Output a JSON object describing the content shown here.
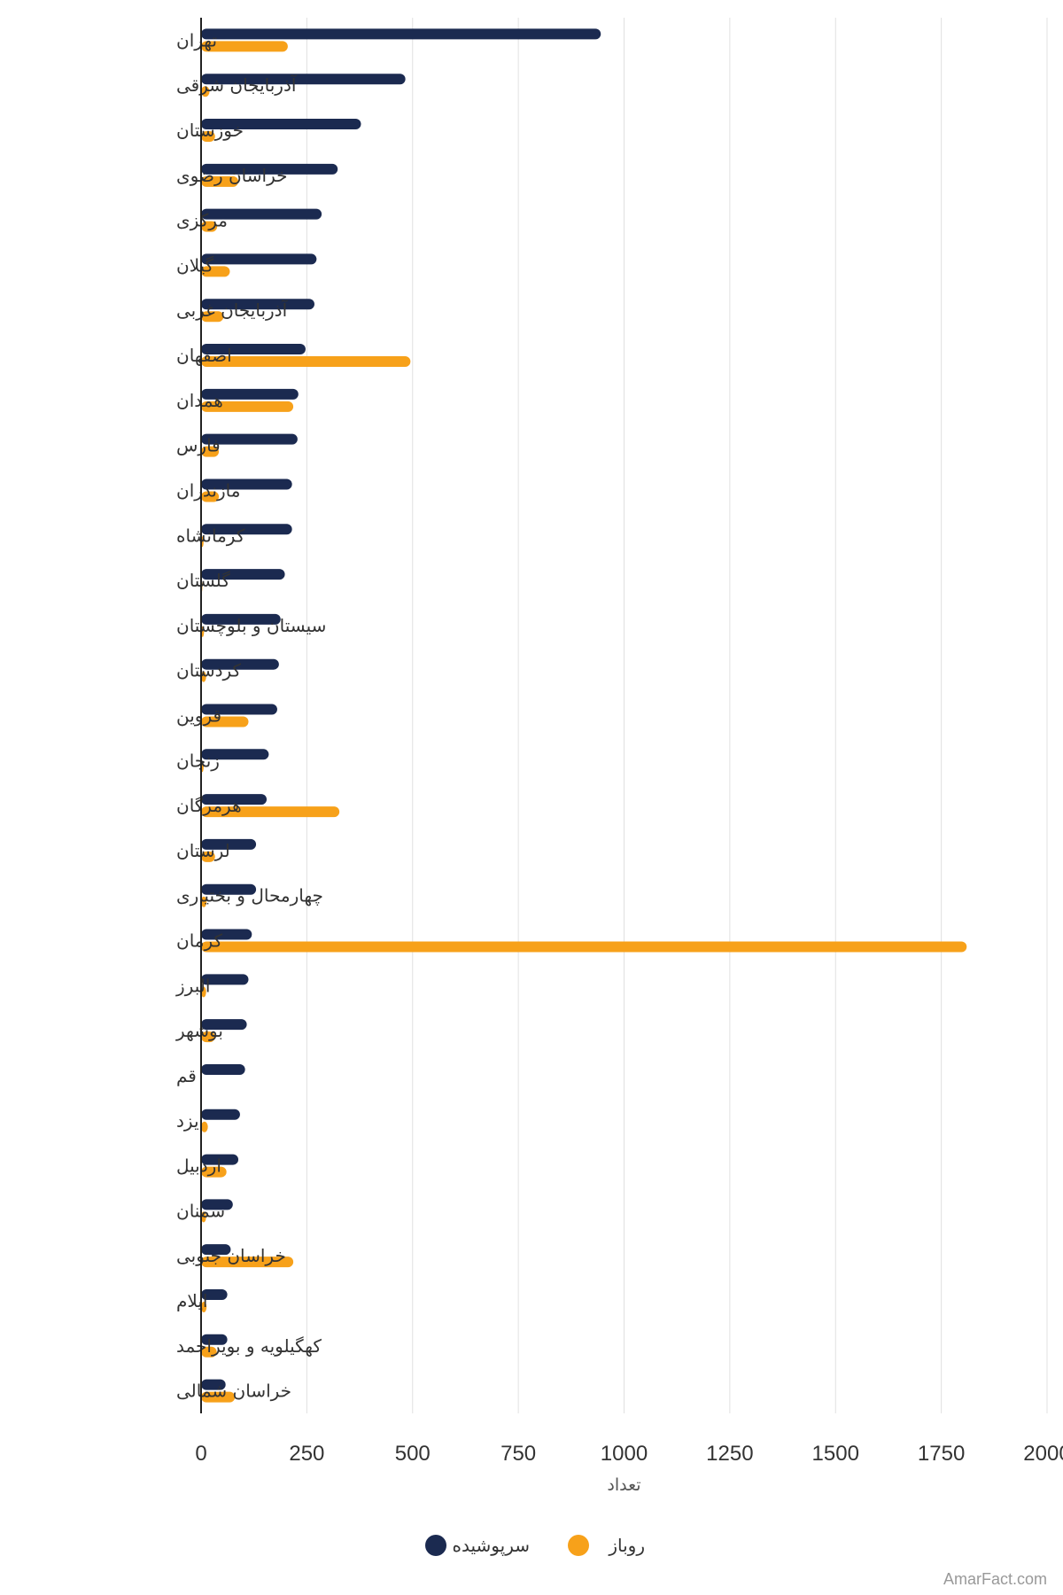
{
  "chart_data": {
    "type": "bar",
    "orientation": "horizontal",
    "categories": [
      "تهران",
      "آذربایجان شرقی",
      "خوزستان",
      "خراسان رضوی",
      "مرکزی",
      "گیلان",
      "آذربایجان غربی",
      "اصفهان",
      "همدان",
      "فارس",
      "مازندران",
      "کرمانشاه",
      "گلستان",
      "سیستان و بلوچستان",
      "کردستان",
      "قزوین",
      "زنجان",
      "هرمزگان",
      "لرستان",
      "چهارمحال و بختیاری",
      "کرمان",
      "البرز",
      "بوشهر",
      "قم",
      "یزد",
      "اردبیل",
      "سمنان",
      "خراسان جنوبی",
      "ایلام",
      "کهگیلویه و بویراحمد",
      "خراسان شمالی"
    ],
    "series": [
      {
        "name": "سرپوشیده",
        "color": "#1b2a50",
        "values": [
          945,
          483,
          378,
          323,
          285,
          273,
          268,
          247,
          230,
          228,
          215,
          215,
          198,
          188,
          184,
          180,
          160,
          155,
          130,
          130,
          120,
          112,
          108,
          104,
          92,
          88,
          75,
          70,
          62,
          62,
          58
        ]
      },
      {
        "name": "روباز",
        "color": "#f7a11a",
        "values": [
          205,
          20,
          33,
          88,
          38,
          68,
          53,
          495,
          218,
          42,
          42,
          6,
          3,
          7,
          12,
          112,
          6,
          327,
          33,
          13,
          1810,
          12,
          33,
          0,
          16,
          60,
          12,
          218,
          13,
          37,
          80
        ]
      }
    ],
    "xlim": [
      0,
      2000
    ],
    "xticks": [
      "0",
      "250",
      "500",
      "750",
      "1000",
      "1250",
      "1500",
      "1750",
      "2000"
    ],
    "xtick_values": [
      0,
      250,
      500,
      750,
      1000,
      1250,
      1500,
      1750,
      2000
    ],
    "xlabel": "تعداد",
    "ylabel": "",
    "grid": "vertical",
    "legend_position": "bottom",
    "legend": [
      {
        "label": "سرپوشیده",
        "color": "#1b2a50"
      },
      {
        "label": "روباز",
        "color": "#f7a11a"
      }
    ]
  },
  "watermark": "AmarFact.com",
  "colors": {
    "grid": "#e0e0e0",
    "axis": "#222222"
  }
}
